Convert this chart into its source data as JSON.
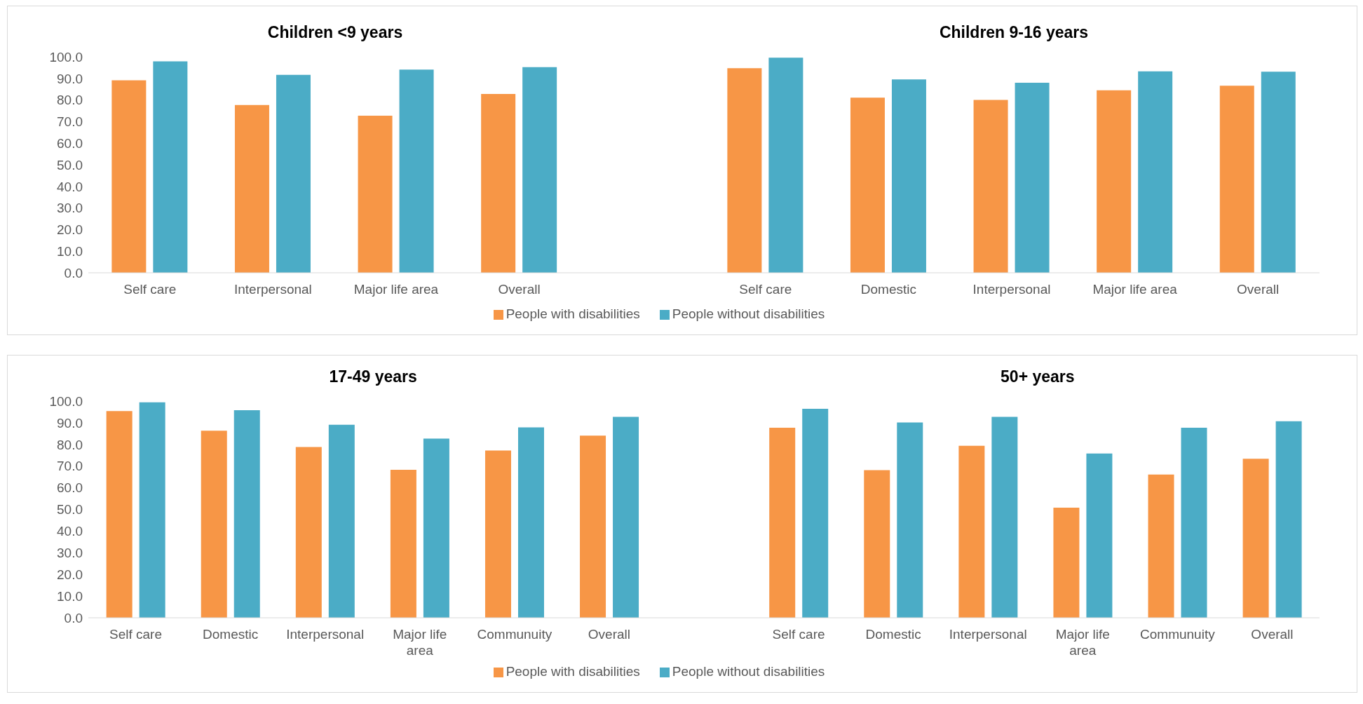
{
  "chart_data": [
    {
      "type": "bar",
      "annotations": [
        "Children <9 years",
        "Children 9-16 years"
      ],
      "categories": [
        "Self care",
        "Interpersonal",
        "Major life area",
        "Overall",
        null,
        "Self care",
        "Domestic",
        "Interpersonal",
        "Major life area",
        "Overall"
      ],
      "series": [
        {
          "name": "People with disabilities",
          "color": "#f79646",
          "values": [
            89.1,
            77.7,
            72.7,
            82.8,
            null,
            94.7,
            81.1,
            80.0,
            84.5,
            86.6
          ]
        },
        {
          "name": "People without disabilities",
          "color": "#4bacc6",
          "values": [
            97.9,
            91.6,
            94.1,
            95.2,
            null,
            99.6,
            89.5,
            88.0,
            93.3,
            93.1
          ]
        }
      ],
      "ylim": [
        0,
        100
      ],
      "yticks": [
        {
          "value": 0,
          "label": "0.0"
        },
        {
          "value": 10,
          "label": "10.0"
        },
        {
          "value": 20,
          "label": "20.0"
        },
        {
          "value": 30,
          "label": "30.0"
        },
        {
          "value": 40,
          "label": "40.0"
        },
        {
          "value": 50,
          "label": "50.0"
        },
        {
          "value": 60,
          "label": "60.0"
        },
        {
          "value": 70,
          "label": "70.0"
        },
        {
          "value": 80,
          "label": "80.0"
        },
        {
          "value": 90,
          "label": "90.0"
        },
        {
          "value": 100,
          "label": "100.0"
        }
      ],
      "grid": false,
      "legend": "bottom"
    },
    {
      "type": "bar",
      "annotations": [
        "17-49 years",
        "50+ years"
      ],
      "categories": [
        "Self care",
        "Domestic",
        "Interpersonal",
        "Major life area",
        "Communuity",
        "Overall",
        null,
        "Self care",
        "Domestic",
        "Interpersonal",
        "Major life area",
        "Communuity",
        "Overall"
      ],
      "series": [
        {
          "name": "People with disabilities",
          "color": "#f79646",
          "values": [
            95.4,
            86.3,
            78.8,
            68.3,
            77.2,
            84.1,
            null,
            87.7,
            68.1,
            79.4,
            50.8,
            66.1,
            73.4
          ]
        },
        {
          "name": "People without disabilities",
          "color": "#4bacc6",
          "values": [
            99.4,
            95.8,
            89.1,
            82.7,
            87.9,
            92.7,
            null,
            96.4,
            90.1,
            92.7,
            75.8,
            87.7,
            90.7
          ]
        }
      ],
      "ylim": [
        0,
        100
      ],
      "yticks": [
        {
          "value": 0,
          "label": "0.0"
        },
        {
          "value": 10,
          "label": "10.0"
        },
        {
          "value": 20,
          "label": "20.0"
        },
        {
          "value": 30,
          "label": "30.0"
        },
        {
          "value": 40,
          "label": "40.0"
        },
        {
          "value": 50,
          "label": "50.0"
        },
        {
          "value": 60,
          "label": "60.0"
        },
        {
          "value": 70,
          "label": "70.0"
        },
        {
          "value": 80,
          "label": "80.0"
        },
        {
          "value": 90,
          "label": "90.0"
        },
        {
          "value": 100,
          "label": "100.0"
        }
      ],
      "grid": false,
      "legend": "bottom"
    }
  ]
}
